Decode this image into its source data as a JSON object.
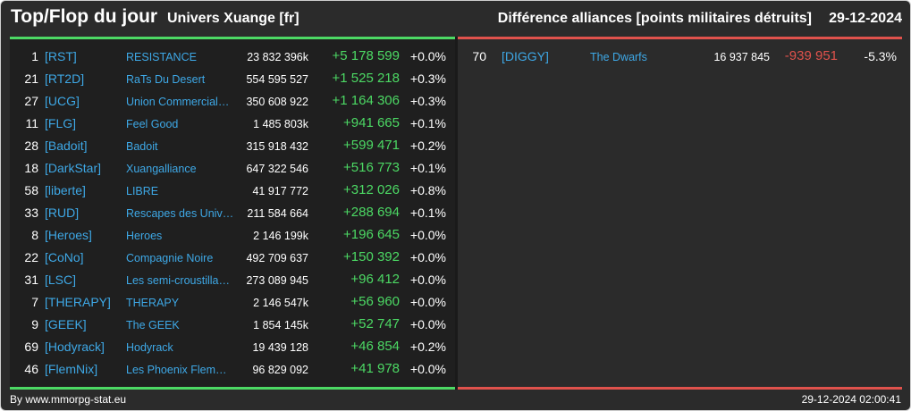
{
  "header": {
    "title": "Top/Flop du jour",
    "universe": "Univers Xuange [fr]",
    "subtitle": "Différence alliances [points militaires détruits]",
    "date": "29-12-2024"
  },
  "colors": {
    "positive": "#4cd964",
    "negative": "#e0524c",
    "link": "#3ea8e6",
    "background": "#2b2b2b"
  },
  "top": [
    {
      "rank": "1",
      "tag": "[RST]",
      "name": "RESISTANCE",
      "points": "23 832 396k",
      "diff": "+5 178 599",
      "pct": "+0.0%"
    },
    {
      "rank": "21",
      "tag": "[RT2D]",
      "name": "RaTs Du Desert",
      "points": "554 595 527",
      "diff": "+1 525 218",
      "pct": "+0.3%"
    },
    {
      "rank": "27",
      "tag": "[UCG]",
      "name": "Union Commerciale…",
      "points": "350 608 922",
      "diff": "+1 164 306",
      "pct": "+0.3%"
    },
    {
      "rank": "11",
      "tag": "[FLG]",
      "name": "Feel Good",
      "points": "1 485 803k",
      "diff": "+941 665",
      "pct": "+0.1%"
    },
    {
      "rank": "28",
      "tag": "[Badoit]",
      "name": "Badoit",
      "points": "315 918 432",
      "diff": "+599 471",
      "pct": "+0.2%"
    },
    {
      "rank": "18",
      "tag": "[DarkStar]",
      "name": "Xuangalliance",
      "points": "647 322 546",
      "diff": "+516 773",
      "pct": "+0.1%"
    },
    {
      "rank": "58",
      "tag": "[liberte]",
      "name": "LIBRE",
      "points": "41 917 772",
      "diff": "+312 026",
      "pct": "+0.8%"
    },
    {
      "rank": "33",
      "tag": "[RUD]",
      "name": "Rescapes des Univ…",
      "points": "211 584 664",
      "diff": "+288 694",
      "pct": "+0.1%"
    },
    {
      "rank": "8",
      "tag": "[Heroes]",
      "name": "Heroes",
      "points": "2 146 199k",
      "diff": "+196 645",
      "pct": "+0.0%"
    },
    {
      "rank": "22",
      "tag": "[CoNo]",
      "name": "Compagnie Noire",
      "points": "492 709 637",
      "diff": "+150 392",
      "pct": "+0.0%"
    },
    {
      "rank": "31",
      "tag": "[LSC]",
      "name": "Les semi-croustilla…",
      "points": "273 089 945",
      "diff": "+96 412",
      "pct": "+0.0%"
    },
    {
      "rank": "7",
      "tag": "[THERAPY]",
      "name": "THERAPY",
      "points": "2 146 547k",
      "diff": "+56 960",
      "pct": "+0.0%"
    },
    {
      "rank": "9",
      "tag": "[GEEK]",
      "name": "The GEEK",
      "points": "1 854 145k",
      "diff": "+52 747",
      "pct": "+0.0%"
    },
    {
      "rank": "69",
      "tag": "[Hodyrack]",
      "name": "Hodyrack",
      "points": "19 439 128",
      "diff": "+46 854",
      "pct": "+0.2%"
    },
    {
      "rank": "46",
      "tag": "[FlemNix]",
      "name": "Les Phoenix Flem…",
      "points": "96 829 092",
      "diff": "+41 978",
      "pct": "+0.0%"
    }
  ],
  "flop": [
    {
      "rank": "70",
      "tag": "[DIGGY]",
      "name": "The Dwarfs",
      "points": "16 937 845",
      "diff": "-939 951",
      "pct": "-5.3%"
    }
  ],
  "footer": {
    "credit": "By www.mmorpg-stat.eu",
    "timestamp": "29-12-2024 02:00:41"
  }
}
